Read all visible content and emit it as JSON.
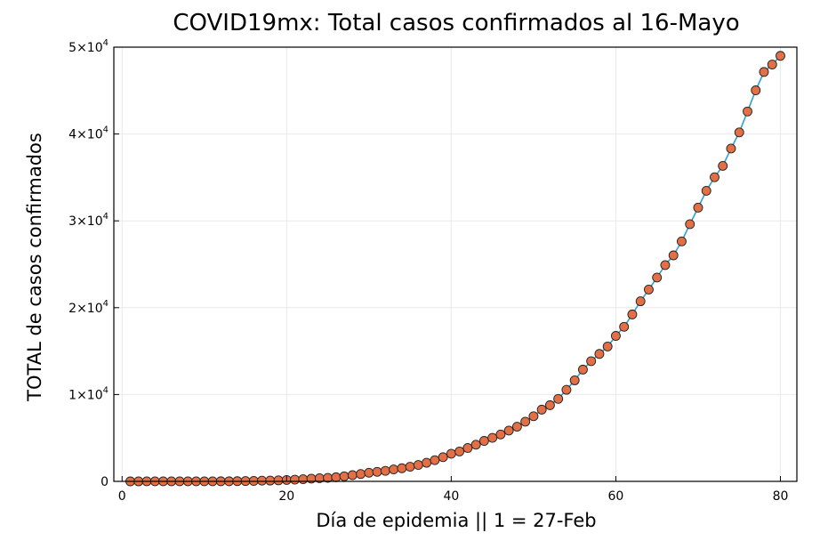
{
  "chart_data": {
    "type": "scatter",
    "title": "COVID19mx: Total casos confirmados al 16-Mayo",
    "xlabel": "Día de epidemia || 1 = 27-Feb",
    "ylabel": "TOTAL de casos confirmados",
    "xlim": [
      -1,
      82
    ],
    "ylim": [
      0,
      50000
    ],
    "grid": true,
    "legend": "none",
    "line_color": "#2f9fd0",
    "marker_color": "#e26f46",
    "x_ticks": [
      {
        "value": 0,
        "label": "0"
      },
      {
        "value": 20,
        "label": "20"
      },
      {
        "value": 40,
        "label": "40"
      },
      {
        "value": 60,
        "label": "60"
      },
      {
        "value": 80,
        "label": "80"
      }
    ],
    "y_ticks": [
      {
        "value": 0,
        "label": "0",
        "mantissa": "",
        "exponent": ""
      },
      {
        "value": 10000,
        "label": "",
        "mantissa": "1×10",
        "exponent": "4"
      },
      {
        "value": 20000,
        "label": "",
        "mantissa": "2×10",
        "exponent": "4"
      },
      {
        "value": 30000,
        "label": "",
        "mantissa": "3×10",
        "exponent": "4"
      },
      {
        "value": 40000,
        "label": "",
        "mantissa": "4×10",
        "exponent": "4"
      },
      {
        "value": 50000,
        "label": "",
        "mantissa": "5×10",
        "exponent": "4"
      }
    ],
    "x": [
      1,
      2,
      3,
      4,
      5,
      6,
      7,
      8,
      9,
      10,
      11,
      12,
      13,
      14,
      15,
      16,
      17,
      18,
      19,
      20,
      21,
      22,
      23,
      24,
      25,
      26,
      27,
      28,
      29,
      30,
      31,
      32,
      33,
      34,
      35,
      36,
      37,
      38,
      39,
      40,
      41,
      42,
      43,
      44,
      45,
      46,
      47,
      48,
      49,
      50,
      51,
      52,
      53,
      54,
      55,
      56,
      57,
      58,
      59,
      60,
      61,
      62,
      63,
      64,
      65,
      66,
      67,
      68,
      69,
      70,
      71,
      72,
      73,
      74,
      75,
      76,
      77,
      78,
      79,
      80
    ],
    "y": [
      1,
      4,
      5,
      5,
      5,
      5,
      6,
      7,
      7,
      7,
      8,
      12,
      12,
      26,
      41,
      53,
      82,
      93,
      118,
      164,
      203,
      251,
      316,
      367,
      405,
      475,
      585,
      717,
      848,
      993,
      1094,
      1215,
      1378,
      1510,
      1688,
      1890,
      2143,
      2439,
      2785,
      3181,
      3441,
      3844,
      4219,
      4661,
      5014,
      5399,
      5847,
      6297,
      6875,
      7497,
      8261,
      8772,
      9501,
      10544,
      11633,
      12872,
      13842,
      14677,
      15529,
      16752,
      17799,
      19224,
      20739,
      22088,
      23471,
      24905,
      26025,
      27634,
      29616,
      31522,
      33460,
      35022,
      36327,
      38324,
      40186,
      42595,
      45032,
      47144,
      48000,
      49000
    ]
  }
}
